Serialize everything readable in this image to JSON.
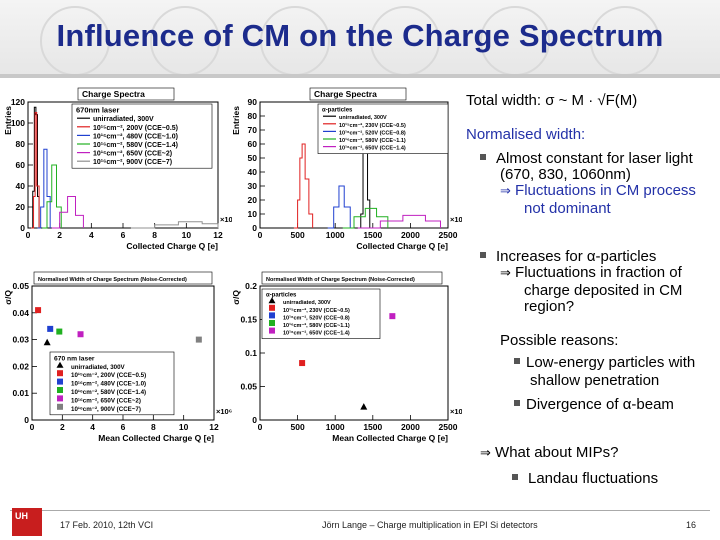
{
  "slide": {
    "title": "Influence of CM on the Charge Spectrum",
    "footer": {
      "logo": "UH",
      "date_event": "17 Feb. 2010,  12th VCI",
      "author_topic": "Jörn Lange – Charge multiplication in EPI Si detectors",
      "page": "16"
    }
  },
  "text": {
    "total_width": "Total width: σ ~ M · √F(M)",
    "normalised_width": "Normalised width:",
    "bullet1_line1": "Almost constant for laser light",
    "bullet1_line2": "(670, 830, 1060nm)",
    "bullet1_conc1": "Fluctuations in CM process",
    "bullet1_conc2": "not dominant",
    "bullet2_line1": "Increases for α-particles",
    "bullet2_conc1": "Fluctuations in fraction of",
    "bullet2_conc2": "charge deposited in CM",
    "bullet2_conc3": "region?",
    "reasons": "Possible reasons:",
    "reason1_line1": "Low-energy particles with",
    "reason1_line2": "shallow penetration",
    "reason2": "Divergence of α-beam",
    "mips": "What about MIPs?",
    "landau": "Landau fluctuations"
  },
  "chart_data": [
    {
      "type": "line",
      "title": "Charge Spectra",
      "xlabel": "Collected Charge Q [e]",
      "ylabel": "Entries",
      "x_multiplier": "×10⁶",
      "xlim": [
        0,
        12
      ],
      "ylim": [
        0,
        120
      ],
      "xticks": [
        "0",
        "2",
        "4",
        "6",
        "8",
        "10",
        "12"
      ],
      "yticks": [
        "0",
        "20",
        "40",
        "60",
        "80",
        "100",
        "120"
      ],
      "legend_title": "670nm laser",
      "series": [
        {
          "name": "unirradiated, 300V",
          "color": "#000000",
          "x": [
            0.2,
            0.3,
            0.4,
            0.5,
            0.6,
            0.7
          ],
          "y": [
            0,
            35,
            115,
            108,
            30,
            0
          ]
        },
        {
          "name": "10¹⁵cm⁻², 200V (CCE~0.5)",
          "color": "#e02020",
          "x": [
            0.2,
            0.35,
            0.45,
            0.55,
            0.7
          ],
          "y": [
            0,
            30,
            110,
            40,
            0
          ]
        },
        {
          "name": "10¹⁶cm⁻², 480V (CCE~1.0)",
          "color": "#2040d0",
          "x": [
            0.6,
            0.8,
            1.0,
            1.2,
            1.4
          ],
          "y": [
            0,
            20,
            75,
            30,
            0
          ]
        },
        {
          "name": "10¹⁶cm⁻², 580V (CCE~1.4)",
          "color": "#20b020",
          "x": [
            0.9,
            1.2,
            1.5,
            1.8,
            2.1
          ],
          "y": [
            0,
            25,
            60,
            20,
            0
          ]
        },
        {
          "name": "10¹⁶cm⁻², 650V (CCE~2)",
          "color": "#c020c0",
          "x": [
            1.5,
            2.0,
            2.5,
            3.0,
            3.5
          ],
          "y": [
            0,
            15,
            30,
            12,
            0
          ]
        },
        {
          "name": "10¹⁶cm⁻², 900V (CCE~7)",
          "color": "#909090",
          "x": [
            6.5,
            8,
            9.5,
            11,
            12
          ],
          "y": [
            0,
            3,
            6,
            4,
            1
          ]
        }
      ]
    },
    {
      "type": "line",
      "title": "Charge Spectra",
      "xlabel": "Collected Charge Q [e]",
      "ylabel": "Entries",
      "x_multiplier": "×10³",
      "xlim": [
        0,
        2500
      ],
      "ylim": [
        0,
        90
      ],
      "xticks": [
        "0",
        "500",
        "1000",
        "1500",
        "2000",
        "2500"
      ],
      "yticks": [
        "0",
        "10",
        "20",
        "30",
        "40",
        "50",
        "60",
        "70",
        "80",
        "90"
      ],
      "legend_title": "α-particles",
      "series": [
        {
          "name": "unirradiated, 300V",
          "color": "#000000",
          "x": [
            1300,
            1340,
            1370,
            1400,
            1430,
            1460
          ],
          "y": [
            0,
            10,
            55,
            60,
            20,
            0
          ]
        },
        {
          "name": "10¹⁵cm⁻², 230V (CCE~0.5)",
          "color": "#e02020",
          "x": [
            450,
            500,
            530,
            560,
            600,
            650,
            700
          ],
          "y": [
            0,
            20,
            50,
            60,
            35,
            10,
            0
          ]
        },
        {
          "name": "10¹⁶cm⁻², 520V (CCE~0.8)",
          "color": "#2040d0",
          "x": [
            900,
            980,
            1050,
            1120,
            1200
          ],
          "y": [
            0,
            15,
            30,
            15,
            0
          ]
        },
        {
          "name": "10¹⁶cm⁻², 580V (CCE~1.1)",
          "color": "#20b020",
          "x": [
            1100,
            1250,
            1400,
            1550,
            1700
          ],
          "y": [
            0,
            8,
            14,
            8,
            0
          ]
        },
        {
          "name": "10¹⁶cm⁻², 650V (CCE~1.4)",
          "color": "#c020c0",
          "x": [
            1300,
            1600,
            1900,
            2200,
            2400
          ],
          "y": [
            0,
            5,
            9,
            5,
            0
          ]
        }
      ]
    },
    {
      "type": "scatter",
      "title": "Normalised Width of Charge Spectrum (Noise-Corrected)",
      "xlabel": "Mean Collected Charge Q [e]",
      "ylabel": "σ/Q",
      "x_multiplier": "×10⁶",
      "xlim": [
        0,
        12
      ],
      "ylim": [
        0,
        0.05
      ],
      "xticks": [
        "0",
        "2",
        "4",
        "6",
        "8",
        "10",
        "12"
      ],
      "yticks": [
        "0",
        "0.01",
        "0.02",
        "0.03",
        "0.04",
        "0.05"
      ],
      "legend_title": "670 nm laser",
      "series": [
        {
          "name": "unirradiated, 300V",
          "color": "#000000",
          "marker": "triangle",
          "x": [
            1.0
          ],
          "y": [
            0.029
          ]
        },
        {
          "name": "10¹⁵cm⁻², 200V (CCE~0.5)",
          "color": "#e02020",
          "marker": "square",
          "x": [
            0.4
          ],
          "y": [
            0.041
          ]
        },
        {
          "name": "10¹⁶cm⁻², 480V (CCE~1.0)",
          "color": "#2040d0",
          "marker": "square",
          "x": [
            1.2
          ],
          "y": [
            0.034
          ]
        },
        {
          "name": "10¹⁶cm⁻², 580V (CCE~1.4)",
          "color": "#20b020",
          "marker": "square",
          "x": [
            1.8
          ],
          "y": [
            0.033
          ]
        },
        {
          "name": "10¹⁶cm⁻², 650V (CCE~2)",
          "color": "#c020c0",
          "marker": "square",
          "x": [
            3.2
          ],
          "y": [
            0.032
          ]
        },
        {
          "name": "10¹⁶cm⁻², 900V (CCE~7)",
          "color": "#808080",
          "marker": "square",
          "x": [
            11.0
          ],
          "y": [
            0.03
          ]
        }
      ]
    },
    {
      "type": "scatter",
      "title": "Normalised Width of Charge Spectrum (Noise-Corrected)",
      "xlabel": "Mean Collected Charge Q [e]",
      "ylabel": "σ/Q",
      "x_multiplier": "×10³",
      "xlim": [
        0,
        2500
      ],
      "ylim": [
        0,
        0.2
      ],
      "xticks": [
        "0",
        "500",
        "1000",
        "1500",
        "2000",
        "2500"
      ],
      "yticks": [
        "0",
        "0.05",
        "0.1",
        "0.15",
        "0.2"
      ],
      "legend_title": "α-particles",
      "series": [
        {
          "name": "unirradiated, 300V",
          "color": "#000000",
          "marker": "triangle",
          "x": [
            1380
          ],
          "y": [
            0.02
          ]
        },
        {
          "name": "10¹⁵cm⁻², 230V (CCE~0.5)",
          "color": "#e02020",
          "marker": "square",
          "x": [
            560
          ],
          "y": [
            0.085
          ]
        },
        {
          "name": "10¹⁶cm⁻², 520V (CCE~0.8)",
          "color": "#2040d0",
          "marker": "square",
          "x": [
            1070
          ],
          "y": [
            0.13
          ]
        },
        {
          "name": "10¹⁶cm⁻², 580V (CCE~1.1)",
          "color": "#20b020",
          "marker": "square",
          "x": [
            1400
          ],
          "y": [
            0.145
          ]
        },
        {
          "name": "10¹⁶cm⁻², 650V (CCE~1.4)",
          "color": "#c020c0",
          "marker": "square",
          "x": [
            1760
          ],
          "y": [
            0.155
          ]
        }
      ]
    }
  ]
}
